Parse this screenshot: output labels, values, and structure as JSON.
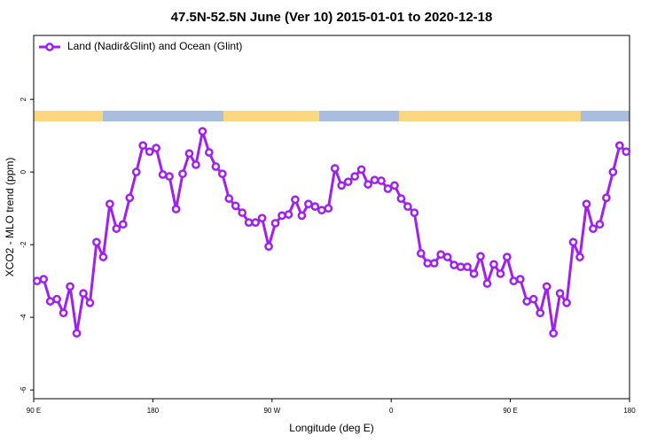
{
  "chart_data": {
    "type": "line",
    "title": "47.5N-52.5N June (Ver 10)   2015-01-01 to 2020-12-18",
    "xlabel": "Longitude (deg E)",
    "ylabel": "XCO2 - MLO trend (ppm)",
    "legend": "top-left",
    "xlim": [
      90,
      540
    ],
    "ylim": [
      -6.24,
      3.76
    ],
    "xticks": [
      {
        "value": 90,
        "label": "90 E"
      },
      {
        "value": 180,
        "label": "180"
      },
      {
        "value": 270,
        "label": "90 W"
      },
      {
        "value": 360,
        "label": "0"
      },
      {
        "value": 450,
        "label": "90 E"
      },
      {
        "value": 540,
        "label": "180"
      }
    ],
    "yticks": [
      -6,
      -4,
      -2,
      0,
      2
    ],
    "x": [
      92.5,
      97.5,
      102.5,
      107.5,
      112.5,
      117.5,
      122.5,
      127.5,
      132.5,
      137.5,
      142.5,
      147.5,
      152.5,
      157.5,
      162.5,
      167.5,
      172.5,
      177.5,
      182.5,
      187.5,
      192.5,
      197.5,
      202.5,
      207.5,
      212.5,
      217.5,
      222.5,
      227.5,
      232.5,
      237.5,
      242.5,
      247.5,
      252.5,
      257.5,
      262.5,
      267.5,
      272.5,
      277.5,
      282.5,
      287.5,
      292.5,
      297.5,
      302.5,
      307.5,
      312.5,
      317.5,
      322.5,
      327.5,
      332.5,
      337.5,
      342.5,
      347.5,
      352.5,
      357.5,
      362.5,
      367.5,
      372.5,
      377.5,
      382.5,
      387.5,
      392.5,
      397.5,
      402.5,
      407.5,
      412.5,
      417.5,
      422.5,
      427.5,
      432.5,
      437.5,
      442.5,
      447.5,
      452.5,
      457.5,
      462.5,
      467.5,
      472.5,
      477.5,
      482.5,
      487.5,
      492.5,
      497.5,
      502.5,
      507.5,
      512.5,
      517.5,
      522.5,
      527.5,
      532.5,
      537.5
    ],
    "series": [
      {
        "name": "Land (Nadir&Glint) and Ocean (Glint)",
        "color": "#a020f0",
        "values": [
          -3.0,
          -2.95,
          -3.56,
          -3.5,
          -3.88,
          -3.15,
          -4.44,
          -3.34,
          -3.6,
          -1.93,
          -2.34,
          -0.88,
          -1.56,
          -1.44,
          -0.71,
          0.0,
          0.73,
          0.56,
          0.66,
          -0.07,
          -0.12,
          -1.02,
          -0.05,
          0.51,
          0.2,
          1.12,
          0.54,
          0.15,
          -0.05,
          -0.73,
          -0.93,
          -1.12,
          -1.39,
          -1.39,
          -1.27,
          -2.05,
          -1.41,
          -1.2,
          -1.17,
          -0.76,
          -1.2,
          -0.88,
          -0.95,
          -1.05,
          -1.0,
          0.1,
          -0.37,
          -0.27,
          -0.12,
          0.07,
          -0.34,
          -0.22,
          -0.24,
          -0.46,
          -0.37,
          -0.73,
          -0.95,
          -1.12,
          -2.24,
          -2.51,
          -2.51,
          -2.27,
          -2.34,
          -2.56,
          -2.61,
          -2.61,
          -2.8,
          -2.32,
          -3.07,
          -2.54,
          -2.8,
          -2.34,
          -3.0,
          -2.95,
          -3.56,
          -3.5,
          -3.88,
          -3.15,
          -4.44,
          -3.34,
          -3.6,
          -1.93,
          -2.34,
          -0.88,
          -1.56,
          -1.44,
          -0.71,
          0.0,
          0.73,
          0.56
        ]
      }
    ]
  }
}
